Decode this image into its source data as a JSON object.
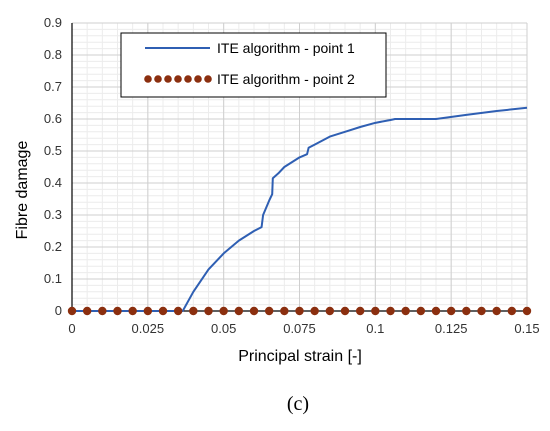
{
  "chart_data": {
    "type": "line",
    "title": "",
    "xlabel": "Principal strain [-]",
    "ylabel": "Fibre damage",
    "xlim": [
      0,
      0.15
    ],
    "ylim": [
      0,
      0.9
    ],
    "x_ticks": [
      0,
      0.025,
      0.05,
      0.075,
      0.1,
      0.125,
      0.15
    ],
    "x_tick_labels": [
      "0",
      "0.025",
      "0.05",
      "0.075",
      "0.1",
      "0.125",
      "0.15"
    ],
    "y_ticks": [
      0,
      0.1,
      0.2,
      0.3,
      0.4,
      0.5,
      0.6,
      0.7,
      0.8,
      0.9
    ],
    "y_tick_labels": [
      "0",
      "0.1",
      "0.2",
      "0.3",
      "0.4",
      "0.5",
      "0.6",
      "0.7",
      "0.8",
      "0.9"
    ],
    "grid": true,
    "legend_position": "top-center",
    "series": [
      {
        "name": "ITE algorithm - point 1",
        "style": "solid-line",
        "color": "#2f5fb3",
        "x": [
          0,
          0.0365,
          0.04,
          0.045,
          0.05,
          0.055,
          0.06,
          0.0625,
          0.063,
          0.065,
          0.066,
          0.0662,
          0.068,
          0.07,
          0.075,
          0.0775,
          0.078,
          0.08,
          0.085,
          0.09,
          0.095,
          0.1,
          0.105,
          0.1065,
          0.12,
          0.13,
          0.14,
          0.15
        ],
        "y": [
          0,
          0,
          0.06,
          0.13,
          0.18,
          0.22,
          0.25,
          0.262,
          0.3,
          0.345,
          0.365,
          0.415,
          0.43,
          0.45,
          0.48,
          0.49,
          0.51,
          0.52,
          0.545,
          0.56,
          0.575,
          0.588,
          0.597,
          0.6,
          0.6,
          0.613,
          0.625,
          0.635
        ]
      },
      {
        "name": "ITE algorithm - point 2",
        "style": "dots",
        "color": "#8b2f0f",
        "x": [
          0,
          0.005,
          0.01,
          0.015,
          0.02,
          0.025,
          0.03,
          0.035,
          0.04,
          0.045,
          0.05,
          0.055,
          0.06,
          0.065,
          0.07,
          0.075,
          0.08,
          0.085,
          0.09,
          0.095,
          0.1,
          0.105,
          0.11,
          0.115,
          0.12,
          0.125,
          0.13,
          0.135,
          0.14,
          0.145,
          0.15
        ],
        "y": [
          0,
          0,
          0,
          0,
          0,
          0,
          0,
          0,
          0,
          0,
          0,
          0,
          0,
          0,
          0,
          0,
          0,
          0,
          0,
          0,
          0,
          0,
          0,
          0,
          0,
          0,
          0,
          0,
          0,
          0,
          0
        ]
      }
    ]
  },
  "panel_label": "(c)"
}
